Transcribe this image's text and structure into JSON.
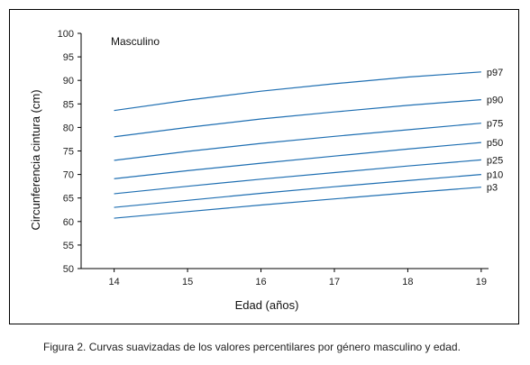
{
  "caption": "Figura 2. Curvas suavizadas de los valores percentilares por género masculino y edad.",
  "chart_data": {
    "type": "line",
    "title": "Masculino",
    "xlabel": "Edad (años)",
    "ylabel": "Circunferencia cintura (cm)",
    "xlim": [
      13.55,
      19.1
    ],
    "ylim": [
      50,
      100
    ],
    "xticks": [
      14,
      15,
      16,
      17,
      18,
      19
    ],
    "yticks": [
      50,
      55,
      60,
      65,
      70,
      75,
      80,
      85,
      90,
      95,
      100
    ],
    "grid": false,
    "line_color": "#1f6fb2",
    "x": [
      14,
      15,
      16,
      17,
      18,
      19
    ],
    "series": [
      {
        "name": "p97",
        "values": [
          83.6,
          85.8,
          87.7,
          89.3,
          90.7,
          91.8
        ]
      },
      {
        "name": "p90",
        "values": [
          78.0,
          80.0,
          81.8,
          83.3,
          84.7,
          85.9
        ]
      },
      {
        "name": "p75",
        "values": [
          73.0,
          74.9,
          76.6,
          78.1,
          79.5,
          80.9
        ]
      },
      {
        "name": "p50",
        "values": [
          69.1,
          70.8,
          72.4,
          73.9,
          75.4,
          76.8
        ]
      },
      {
        "name": "p25",
        "values": [
          65.9,
          67.5,
          69.0,
          70.4,
          71.8,
          73.1
        ]
      },
      {
        "name": "p10",
        "values": [
          63.0,
          64.5,
          66.0,
          67.4,
          68.7,
          70.0
        ]
      },
      {
        "name": "p3",
        "values": [
          60.7,
          62.1,
          63.5,
          64.8,
          66.1,
          67.3
        ]
      }
    ]
  }
}
